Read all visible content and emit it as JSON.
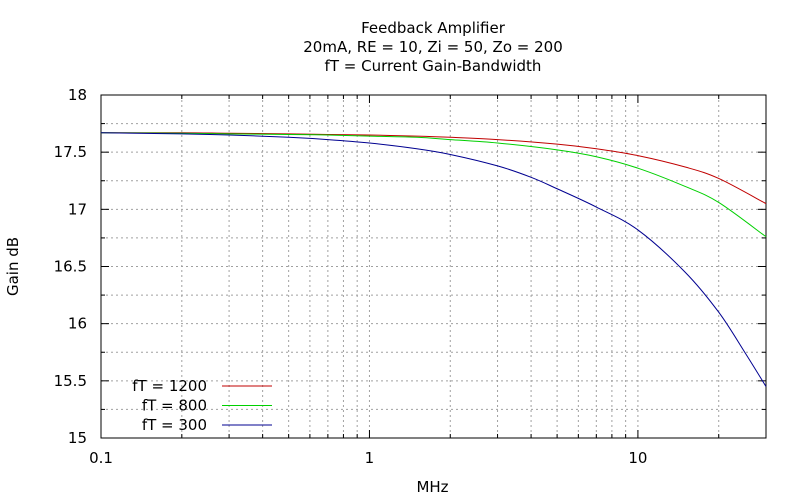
{
  "chart_data": {
    "type": "line",
    "title": [
      "Feedback Amplifier",
      "20mA, RE = 10, Zi = 50, Zo = 200",
      "fT = Current Gain-Bandwidth"
    ],
    "xlabel": "MHz",
    "ylabel": "Gain dB",
    "x_scale": "log",
    "xlim": [
      0.1,
      30
    ],
    "ylim": [
      15,
      18
    ],
    "x_ticks": [
      0.1,
      1,
      10
    ],
    "x_tick_labels": [
      "0.1",
      "1",
      "10"
    ],
    "y_ticks": [
      15,
      15.5,
      16,
      16.5,
      17,
      17.5,
      18
    ],
    "y_tick_labels": [
      "15",
      "15.5",
      "16",
      "16.5",
      "17",
      "17.5",
      "18"
    ],
    "grid": true,
    "legend_position": "bottom-left",
    "series": [
      {
        "name": "fT = 1200",
        "color": "#c00000",
        "x": [
          0.1,
          0.2,
          0.3,
          0.5,
          0.7,
          1,
          1.5,
          2,
          3,
          5,
          7,
          10,
          15,
          20,
          30
        ],
        "y": [
          17.67,
          17.67,
          17.665,
          17.66,
          17.655,
          17.65,
          17.64,
          17.63,
          17.61,
          17.57,
          17.53,
          17.47,
          17.37,
          17.27,
          17.05
        ]
      },
      {
        "name": "fT = 800",
        "color": "#00d000",
        "x": [
          0.1,
          0.2,
          0.3,
          0.5,
          0.7,
          1,
          1.5,
          2,
          3,
          5,
          7,
          10,
          15,
          20,
          30
        ],
        "y": [
          17.67,
          17.665,
          17.66,
          17.655,
          17.65,
          17.64,
          17.63,
          17.61,
          17.58,
          17.52,
          17.46,
          17.36,
          17.2,
          17.06,
          16.76
        ]
      },
      {
        "name": "fT = 300",
        "color": "#000090",
        "x": [
          0.1,
          0.2,
          0.3,
          0.5,
          0.7,
          1,
          1.5,
          2,
          3,
          4,
          5,
          7,
          10,
          15,
          20,
          25,
          30
        ],
        "y": [
          17.67,
          17.66,
          17.65,
          17.63,
          17.61,
          17.58,
          17.53,
          17.48,
          17.38,
          17.28,
          17.18,
          17.02,
          16.82,
          16.45,
          16.1,
          15.75,
          15.45
        ]
      }
    ]
  }
}
